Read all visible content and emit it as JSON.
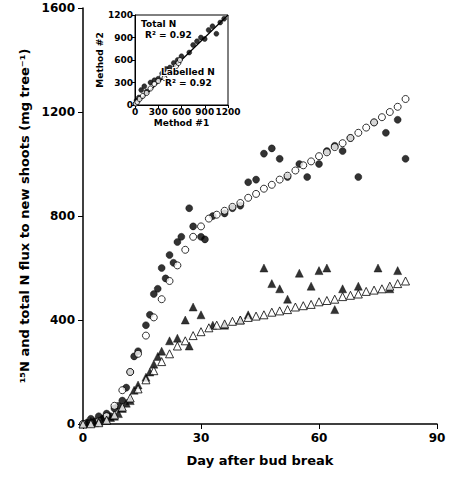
{
  "chart_data": [
    {
      "type": "scatter",
      "xlabel": "Day after bud break",
      "ylabel": "¹⁵N and total N flux to new shoots (mg tree⁻¹)",
      "xlim": [
        0,
        90
      ],
      "xticks": [
        0,
        30,
        60,
        90
      ],
      "ylim": [
        0,
        1600
      ],
      "yticks": [
        0,
        400,
        800,
        1200,
        1600
      ],
      "grid": false,
      "series": [
        {
          "color": "#000000",
          "marker": "circle",
          "x": [
            0,
            1,
            2,
            3,
            4,
            5,
            6,
            7,
            8,
            9,
            10,
            11,
            12,
            13,
            14,
            16,
            17,
            18,
            19,
            20,
            21,
            22,
            23,
            24,
            25,
            27,
            28,
            30,
            31,
            33,
            36,
            38,
            40,
            42,
            44,
            46,
            48,
            50,
            52,
            55,
            57,
            60,
            62,
            64,
            66,
            68,
            70,
            74,
            77,
            80,
            82
          ],
          "values": [
            0,
            5,
            20,
            10,
            30,
            20,
            40,
            30,
            60,
            70,
            90,
            140,
            200,
            260,
            280,
            380,
            420,
            500,
            520,
            600,
            560,
            650,
            620,
            700,
            720,
            830,
            760,
            720,
            710,
            800,
            810,
            830,
            840,
            930,
            940,
            1040,
            1060,
            1020,
            950,
            1000,
            950,
            1000,
            1050,
            1070,
            1050,
            1100,
            950,
            1160,
            1120,
            1170,
            1020
          ]
        },
        {
          "color": "#000000",
          "marker": "open_circle",
          "x": [
            0,
            2,
            4,
            6,
            8,
            10,
            12,
            14,
            16,
            18,
            20,
            22,
            24,
            26,
            28,
            30,
            32,
            34,
            36,
            38,
            40,
            42,
            44,
            46,
            48,
            50,
            52,
            54,
            56,
            58,
            60,
            62,
            64,
            66,
            68,
            70,
            72,
            74,
            76,
            78,
            80,
            82
          ],
          "values": [
            0,
            2,
            10,
            30,
            70,
            130,
            200,
            270,
            340,
            410,
            480,
            550,
            610,
            670,
            720,
            760,
            790,
            805,
            820,
            835,
            850,
            870,
            885,
            905,
            920,
            940,
            955,
            975,
            995,
            1010,
            1030,
            1045,
            1065,
            1080,
            1100,
            1120,
            1140,
            1160,
            1180,
            1200,
            1220,
            1250
          ]
        },
        {
          "color": "#000000",
          "marker": "triangle",
          "x": [
            0,
            1,
            2,
            3,
            4,
            5,
            6,
            7,
            8,
            9,
            10,
            11,
            12,
            13,
            14,
            16,
            17,
            18,
            19,
            20,
            22,
            24,
            26,
            27,
            28,
            30,
            33,
            36,
            40,
            42,
            46,
            48,
            50,
            52,
            55,
            58,
            60,
            62,
            64,
            66,
            70,
            75,
            78,
            80
          ],
          "values": [
            0,
            5,
            10,
            5,
            10,
            20,
            15,
            25,
            30,
            40,
            60,
            80,
            90,
            130,
            150,
            180,
            200,
            230,
            260,
            280,
            320,
            330,
            400,
            300,
            450,
            420,
            380,
            380,
            400,
            420,
            600,
            540,
            520,
            480,
            580,
            530,
            590,
            600,
            440,
            520,
            530,
            600,
            520,
            590
          ]
        },
        {
          "color": "#000000",
          "marker": "open_triangle",
          "x": [
            0,
            2,
            4,
            6,
            8,
            10,
            12,
            14,
            16,
            18,
            20,
            22,
            24,
            26,
            28,
            30,
            32,
            34,
            36,
            38,
            40,
            42,
            44,
            46,
            48,
            50,
            52,
            54,
            56,
            58,
            60,
            62,
            64,
            66,
            68,
            70,
            72,
            74,
            76,
            78,
            80,
            82
          ],
          "values": [
            0,
            1,
            5,
            15,
            35,
            65,
            100,
            135,
            170,
            205,
            240,
            270,
            300,
            320,
            340,
            355,
            370,
            380,
            385,
            395,
            400,
            410,
            415,
            420,
            430,
            435,
            440,
            450,
            455,
            460,
            470,
            475,
            480,
            490,
            495,
            500,
            510,
            515,
            520,
            530,
            540,
            550
          ]
        }
      ]
    },
    {
      "type": "scatter",
      "xlabel": "Method #1",
      "ylabel": "Method #2",
      "xlim": [
        0,
        1200
      ],
      "xticks": [
        0,
        300,
        600,
        900,
        1200
      ],
      "ylim": [
        0,
        1200
      ],
      "yticks": [
        0,
        300,
        600,
        900,
        1200
      ],
      "grid": false,
      "series": [
        {
          "name": "Total N",
          "annotation": "R² = 0.92",
          "color": "#000000",
          "marker": "circle",
          "x": [
            10,
            20,
            50,
            80,
            120,
            150,
            200,
            250,
            300,
            350,
            400,
            450,
            500,
            550,
            600,
            700,
            750,
            800,
            850,
            900,
            950,
            1000,
            1050,
            1100,
            1150
          ],
          "values": [
            20,
            60,
            100,
            200,
            250,
            180,
            300,
            330,
            350,
            420,
            480,
            500,
            560,
            600,
            650,
            700,
            800,
            850,
            900,
            880,
            1000,
            1050,
            950,
            1100,
            1150
          ]
        },
        {
          "name": "Labelled N",
          "annotation": "R² = 0.92",
          "color": "#000000",
          "marker": "open_circle",
          "x": [
            10,
            30,
            60,
            100,
            150,
            200,
            250,
            300,
            350,
            380,
            400,
            420,
            450,
            500,
            530,
            560,
            580
          ],
          "values": [
            20,
            40,
            80,
            120,
            160,
            220,
            280,
            320,
            380,
            360,
            420,
            430,
            440,
            480,
            520,
            560,
            600
          ]
        },
        {
          "type": "line",
          "line_style": "solid",
          "color": "#000000",
          "x": [
            0,
            1200
          ],
          "values": [
            0,
            1200
          ]
        }
      ]
    }
  ]
}
